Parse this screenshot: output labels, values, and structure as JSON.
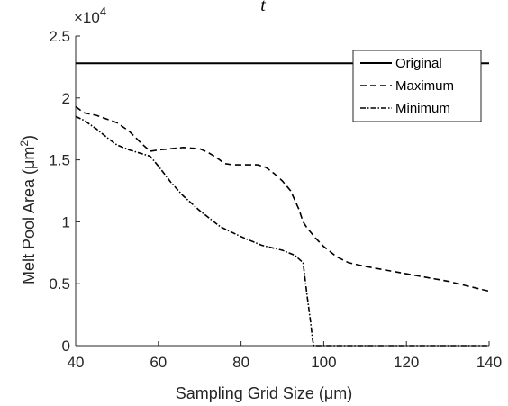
{
  "chart_data": {
    "type": "line",
    "title": "t",
    "xlabel": "Sampling Grid Size (μm)",
    "ylabel": "Melt Pool Area (μm²)",
    "ylabel_base": "Melt Pool Area (μm",
    "ylabel_sup": "2",
    "ylabel_tail": ")",
    "exponent_base": "×10",
    "exponent_power": "4",
    "xlim": [
      40,
      140
    ],
    "ylim": [
      0,
      2.5
    ],
    "y_multiplier": 10000,
    "xticks": [
      40,
      60,
      80,
      100,
      120,
      140
    ],
    "xtick_labels": [
      "40",
      "60",
      "80",
      "100",
      "120",
      "140"
    ],
    "yticks": [
      0,
      0.5,
      1,
      1.5,
      2,
      2.5
    ],
    "ytick_labels": [
      "0",
      "0.5",
      "1",
      "1.5",
      "2",
      "2.5"
    ],
    "grid": false,
    "legend_position": "top-right",
    "series": [
      {
        "name": "Original",
        "style": "solid",
        "color": "#000000",
        "x": [
          40,
          140
        ],
        "y": [
          2.28,
          2.28
        ]
      },
      {
        "name": "Maximum",
        "style": "dashed",
        "color": "#000000",
        "x": [
          40,
          42,
          45,
          50,
          53,
          56,
          58,
          60,
          63,
          66,
          70,
          72,
          74,
          76,
          78,
          80,
          84,
          86,
          88,
          90,
          92,
          94,
          95,
          96,
          98,
          100,
          103,
          106,
          110,
          120,
          130,
          135,
          140
        ],
        "y": [
          1.93,
          1.88,
          1.86,
          1.8,
          1.73,
          1.63,
          1.57,
          1.58,
          1.59,
          1.6,
          1.59,
          1.56,
          1.52,
          1.47,
          1.46,
          1.46,
          1.46,
          1.44,
          1.39,
          1.33,
          1.25,
          1.1,
          1.0,
          0.95,
          0.87,
          0.8,
          0.72,
          0.67,
          0.64,
          0.58,
          0.52,
          0.48,
          0.44
        ]
      },
      {
        "name": "Minimum",
        "style": "dashdot",
        "color": "#000000",
        "x": [
          40,
          42,
          45,
          48,
          50,
          53,
          56,
          58,
          60,
          63,
          66,
          70,
          75,
          80,
          85,
          90,
          93,
          95,
          96,
          96.8,
          97.3,
          97.6,
          98,
          100,
          110,
          120,
          130,
          140
        ],
        "y": [
          1.85,
          1.82,
          1.75,
          1.67,
          1.62,
          1.58,
          1.55,
          1.53,
          1.45,
          1.32,
          1.21,
          1.09,
          0.96,
          0.88,
          0.81,
          0.77,
          0.73,
          0.67,
          0.4,
          0.2,
          0.05,
          0.0,
          0.0,
          0.0,
          0.0,
          0.0,
          0.0,
          0.0
        ]
      }
    ]
  }
}
